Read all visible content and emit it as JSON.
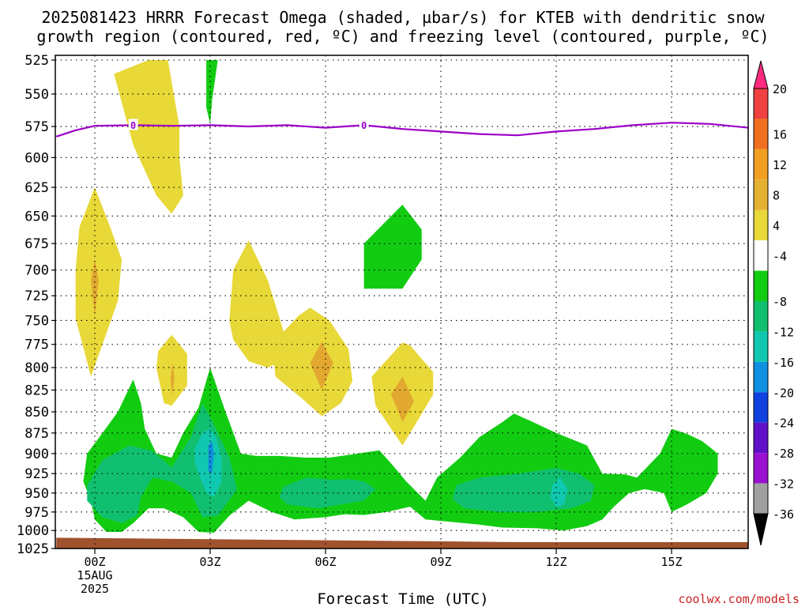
{
  "chart_data": {
    "type": "heatmap",
    "title_line1": "2025081423 HRRR Forecast Omega (shaded, µbar/s) for KTEB with dendritic snow",
    "title_line2": "growth region (contoured, red, ºC) and freezing level (contoured, purple, ºC)",
    "xlabel": "Forecast Time (UTC)",
    "ylabel": "",
    "credit": "coolwx.com/models",
    "x_ticks": [
      {
        "hour": 0,
        "label": "00Z",
        "sub1": "15AUG",
        "sub2": "2025"
      },
      {
        "hour": 3,
        "label": "03Z"
      },
      {
        "hour": 6,
        "label": "06Z"
      },
      {
        "hour": 9,
        "label": "09Z"
      },
      {
        "hour": 12,
        "label": "12Z"
      },
      {
        "hour": 15,
        "label": "15Z"
      }
    ],
    "xlim": [
      -1,
      17
    ],
    "y_levels": [
      "525",
      "550",
      "575",
      "600",
      "625",
      "650",
      "675",
      "700",
      "725",
      "750",
      "775",
      "800",
      "825",
      "850",
      "875",
      "900",
      "925",
      "950",
      "975",
      "1000",
      "1025"
    ],
    "ylim_hPa": [
      525,
      1025
    ],
    "y_scale": "log-pressure",
    "grid": true,
    "colorbar": {
      "labels": [
        "20",
        "16",
        "12",
        "8",
        "4",
        "-4",
        "-8",
        "-12",
        "-16",
        "-20",
        "-24",
        "-28",
        "-32",
        "-36"
      ],
      "colors": [
        "#ff2a80",
        "#f04040",
        "#f07020",
        "#f0a020",
        "#e4b030",
        "#e8d838",
        "#ffffff",
        "#12cc12",
        "#10c070",
        "#10c8b0",
        "#1090e0",
        "#1040e0",
        "#6010c8",
        "#9810d0",
        "#a0a0a0",
        "#000000"
      ]
    },
    "freezing_level": {
      "label": "0",
      "label_hours": [
        1.0,
        7.0
      ],
      "points": [
        [
          -1,
          583
        ],
        [
          -0.5,
          578
        ],
        [
          0,
          574.5
        ],
        [
          1,
          574
        ],
        [
          2,
          574.5
        ],
        [
          3,
          574
        ],
        [
          4,
          575
        ],
        [
          5,
          574
        ],
        [
          6,
          576
        ],
        [
          7,
          574
        ],
        [
          8,
          577
        ],
        [
          9,
          579
        ],
        [
          10,
          581
        ],
        [
          11,
          582
        ],
        [
          12,
          579
        ],
        [
          13,
          577
        ],
        [
          14,
          574
        ],
        [
          15,
          572
        ],
        [
          16,
          573
        ],
        [
          17,
          576
        ]
      ]
    },
    "terrain": {
      "color": "#a0522d",
      "points": [
        [
          -1,
          1010
        ],
        [
          1,
          1011
        ],
        [
          5,
          1013
        ],
        [
          9,
          1015
        ],
        [
          11,
          1016
        ],
        [
          17,
          1016
        ]
      ]
    },
    "shaded_regions": [
      {
        "value": "4 to 8",
        "color": "#e8d838",
        "points": [
          [
            1.9,
            525
          ],
          [
            1.4,
            525
          ],
          [
            0.5,
            535
          ],
          [
            1.0,
            590
          ],
          [
            1.6,
            632
          ],
          [
            2.0,
            648
          ],
          [
            2.3,
            632
          ],
          [
            2.2,
            600
          ],
          [
            2.2,
            575
          ],
          [
            1.9,
            525
          ]
        ]
      },
      {
        "value": "4 to 8",
        "color": "#e8d838",
        "points": [
          [
            0,
            625
          ],
          [
            -0.4,
            660
          ],
          [
            -0.5,
            700
          ],
          [
            -0.5,
            748
          ],
          [
            -0.3,
            778
          ],
          [
            -0.1,
            810
          ],
          [
            0.2,
            775
          ],
          [
            0.6,
            730
          ],
          [
            0.7,
            690
          ],
          [
            0.4,
            660
          ],
          [
            0,
            625
          ]
        ]
      },
      {
        "value": "8 to 12",
        "color": "#e2a830",
        "points": [
          [
            0,
            690
          ],
          [
            -0.1,
            710
          ],
          [
            0,
            745
          ],
          [
            0.1,
            710
          ],
          [
            0,
            690
          ]
        ]
      },
      {
        "value": "4 to 8",
        "color": "#e8d838",
        "points": [
          [
            2,
            765
          ],
          [
            1.65,
            782
          ],
          [
            1.6,
            800
          ],
          [
            1.8,
            840
          ],
          [
            2.0,
            843
          ],
          [
            2.4,
            820
          ],
          [
            2.4,
            785
          ],
          [
            2,
            765
          ]
        ]
      },
      {
        "value": "8 to 12",
        "color": "#e2a830",
        "points": [
          [
            2.02,
            795
          ],
          [
            1.97,
            812
          ],
          [
            2.02,
            832
          ],
          [
            2.07,
            812
          ],
          [
            2.02,
            795
          ]
        ]
      },
      {
        "value": "4 to 8",
        "color": "#e8d838",
        "points": [
          [
            4,
            672
          ],
          [
            3.6,
            700
          ],
          [
            3.5,
            750
          ],
          [
            3.6,
            770
          ],
          [
            4.0,
            793
          ],
          [
            4.5,
            800
          ],
          [
            5.0,
            790
          ],
          [
            4.9,
            760
          ],
          [
            4.5,
            710
          ],
          [
            4,
            672
          ]
        ]
      },
      {
        "value": "4 to 8",
        "color": "#e8d838",
        "points": [
          [
            5.3,
            745
          ],
          [
            4.6,
            775
          ],
          [
            4.7,
            810
          ],
          [
            5.4,
            835
          ],
          [
            5.9,
            855
          ],
          [
            6.4,
            840
          ],
          [
            6.7,
            815
          ],
          [
            6.6,
            780
          ],
          [
            6.1,
            750
          ],
          [
            5.6,
            737
          ],
          [
            5.3,
            745
          ]
        ]
      },
      {
        "value": "8 to 12",
        "color": "#e2a830",
        "points": [
          [
            5.9,
            772
          ],
          [
            5.6,
            795
          ],
          [
            5.9,
            825
          ],
          [
            6.2,
            795
          ],
          [
            5.9,
            772
          ]
        ]
      },
      {
        "value": "4 to 8",
        "color": "#e8d838",
        "points": [
          [
            8,
            773
          ],
          [
            7.2,
            810
          ],
          [
            7.3,
            843
          ],
          [
            8.0,
            890
          ],
          [
            8.4,
            860
          ],
          [
            8.8,
            830
          ],
          [
            8.8,
            805
          ],
          [
            8.2,
            776
          ],
          [
            8,
            773
          ]
        ]
      },
      {
        "value": "8 to 12",
        "color": "#e2a830",
        "points": [
          [
            8.0,
            810
          ],
          [
            7.7,
            830
          ],
          [
            7.9,
            850
          ],
          [
            8.0,
            862
          ],
          [
            8.3,
            838
          ],
          [
            8.0,
            810
          ]
        ]
      },
      {
        "value": "-4 to -8",
        "color": "#12cc12",
        "points": [
          [
            3.0,
            525
          ],
          [
            2.9,
            525
          ],
          [
            2.9,
            560
          ],
          [
            3.0,
            573
          ],
          [
            3.05,
            555
          ],
          [
            3.2,
            525
          ],
          [
            3.0,
            525
          ]
        ]
      },
      {
        "value": "-4 to -8",
        "color": "#12cc12",
        "points": [
          [
            8.0,
            640
          ],
          [
            7.0,
            675
          ],
          [
            7.0,
            718
          ],
          [
            8.0,
            718
          ],
          [
            8.5,
            690
          ],
          [
            8.5,
            662
          ],
          [
            8,
            640
          ]
        ]
      },
      {
        "value": "-4 to -8",
        "color": "#12cc12",
        "points": [
          [
            1.0,
            813
          ],
          [
            0.6,
            850
          ],
          [
            0.2,
            875
          ],
          [
            -0.2,
            900
          ],
          [
            -0.3,
            935
          ],
          [
            -0.1,
            960
          ],
          [
            0,
            985
          ],
          [
            0.3,
            1002
          ],
          [
            0.7,
            1002
          ],
          [
            1.0,
            990
          ],
          [
            1.4,
            970
          ],
          [
            1.8,
            970
          ],
          [
            2.3,
            982
          ],
          [
            2.7,
            1002
          ],
          [
            3.1,
            1003
          ],
          [
            3.5,
            980
          ],
          [
            4,
            960
          ],
          [
            4.6,
            975
          ],
          [
            5.2,
            985
          ],
          [
            6.0,
            982
          ],
          [
            6.5,
            978
          ],
          [
            7,
            979
          ],
          [
            7.6,
            975
          ],
          [
            8.2,
            968
          ],
          [
            8.6,
            985
          ],
          [
            9.2,
            988
          ],
          [
            10,
            992
          ],
          [
            10.6,
            996
          ],
          [
            11.5,
            997
          ],
          [
            12.2,
            1000
          ],
          [
            12.8,
            994
          ],
          [
            13.2,
            985
          ],
          [
            13.5,
            968
          ],
          [
            13.9,
            950
          ],
          [
            14.3,
            945
          ],
          [
            14.8,
            950
          ],
          [
            15,
            975
          ],
          [
            15.4,
            965
          ],
          [
            15.9,
            950
          ],
          [
            16.2,
            925
          ],
          [
            16.2,
            900
          ],
          [
            15.8,
            885
          ],
          [
            15.4,
            876
          ],
          [
            15,
            870
          ],
          [
            14.7,
            900
          ],
          [
            14.1,
            930
          ],
          [
            13.8,
            926
          ],
          [
            13.2,
            925
          ],
          [
            12.8,
            890
          ],
          [
            12,
            875
          ],
          [
            11.3,
            860
          ],
          [
            10.9,
            852
          ],
          [
            10.6,
            862
          ],
          [
            10,
            880
          ],
          [
            9.5,
            905
          ],
          [
            8.9,
            930
          ],
          [
            8.6,
            960
          ],
          [
            8.4,
            950
          ],
          [
            8.1,
            935
          ],
          [
            7.7,
            912
          ],
          [
            7.4,
            896
          ],
          [
            6.7,
            901
          ],
          [
            6.1,
            905
          ],
          [
            5.5,
            905
          ],
          [
            4.8,
            903
          ],
          [
            4.2,
            903
          ],
          [
            3.8,
            900
          ],
          [
            3.4,
            850
          ],
          [
            3.0,
            800
          ],
          [
            2.7,
            845
          ],
          [
            2.3,
            875
          ],
          [
            2.0,
            905
          ],
          [
            1.6,
            900
          ],
          [
            1.3,
            870
          ],
          [
            1.2,
            840
          ],
          [
            1,
            813
          ]
        ]
      },
      {
        "value": "-8 to -12",
        "color": "#10c070",
        "points": [
          [
            -0.2,
            940
          ],
          [
            0.2,
            908
          ],
          [
            0.9,
            890
          ],
          [
            1.5,
            897
          ],
          [
            2.0,
            917
          ],
          [
            2.5,
            880
          ],
          [
            2.8,
            840
          ],
          [
            3.1,
            865
          ],
          [
            3.5,
            905
          ],
          [
            3.7,
            945
          ],
          [
            3.2,
            980
          ],
          [
            2.8,
            982
          ],
          [
            2.5,
            950
          ],
          [
            2.0,
            935
          ],
          [
            1.5,
            930
          ],
          [
            1.2,
            955
          ],
          [
            1.1,
            980
          ],
          [
            0.7,
            990
          ],
          [
            0.2,
            982
          ],
          [
            -0.2,
            960
          ],
          [
            -0.2,
            940
          ]
        ]
      },
      {
        "value": "-8 to -12",
        "color": "#10c070",
        "points": [
          [
            4.9,
            942
          ],
          [
            5.5,
            930
          ],
          [
            6.2,
            933
          ],
          [
            6.6,
            932
          ],
          [
            7.0,
            935
          ],
          [
            7.3,
            945
          ],
          [
            7.0,
            960
          ],
          [
            6.4,
            965
          ],
          [
            5.8,
            970
          ],
          [
            5.0,
            965
          ],
          [
            4.8,
            955
          ],
          [
            4.9,
            942
          ]
        ]
      },
      {
        "value": "-8 to -12",
        "color": "#10c070",
        "points": [
          [
            9.4,
            940
          ],
          [
            10,
            930
          ],
          [
            11,
            925
          ],
          [
            12,
            918
          ],
          [
            12.6,
            925
          ],
          [
            13.0,
            940
          ],
          [
            12.9,
            960
          ],
          [
            12.4,
            970
          ],
          [
            11.5,
            975
          ],
          [
            10.5,
            975
          ],
          [
            9.6,
            970
          ],
          [
            9.3,
            958
          ],
          [
            9.4,
            940
          ]
        ]
      },
      {
        "value": "-12 to -16",
        "color": "#10c8b0",
        "points": [
          [
            2.6,
            895
          ],
          [
            2.8,
            875
          ],
          [
            3.0,
            870
          ],
          [
            3.15,
            880
          ],
          [
            3.3,
            905
          ],
          [
            3.3,
            935
          ],
          [
            3.1,
            955
          ],
          [
            2.9,
            950
          ],
          [
            2.7,
            925
          ],
          [
            2.6,
            910
          ],
          [
            2.6,
            895
          ]
        ]
      },
      {
        "value": "-12 to -16",
        "color": "#10c8b0",
        "points": [
          [
            11.9,
            940
          ],
          [
            12.1,
            930
          ],
          [
            12.3,
            945
          ],
          [
            12.2,
            965
          ],
          [
            12.0,
            968
          ],
          [
            11.85,
            955
          ],
          [
            11.9,
            940
          ]
        ]
      },
      {
        "value": "-16 to -20",
        "color": "#1090e0",
        "points": [
          [
            2.95,
            890
          ],
          [
            3.05,
            885
          ],
          [
            3.1,
            900
          ],
          [
            3.05,
            925
          ],
          [
            2.95,
            922
          ],
          [
            2.95,
            890
          ]
        ]
      }
    ]
  }
}
